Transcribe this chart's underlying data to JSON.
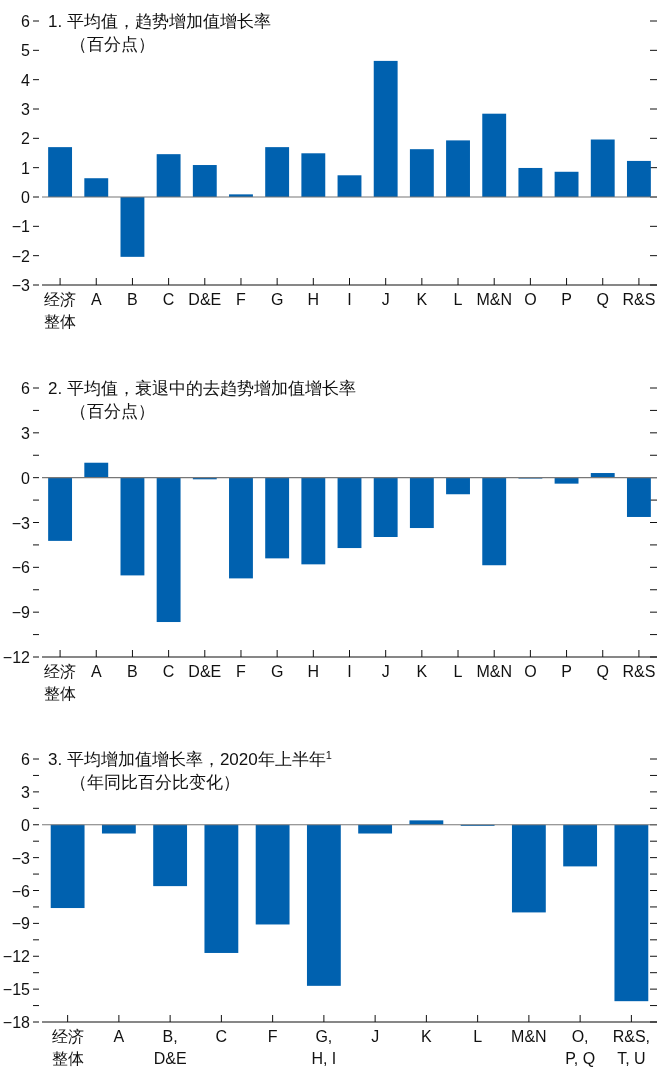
{
  "chart_data": [
    {
      "type": "bar",
      "title": "1. 平均值，趋势增加值增长率",
      "subtitle": "（百分点）",
      "color": "#0061af",
      "categories": [
        "经济整体",
        "A",
        "B",
        "C",
        "D&E",
        "F",
        "G",
        "H",
        "I",
        "J",
        "K",
        "L",
        "M&N",
        "O",
        "P",
        "Q",
        "R&S"
      ],
      "values": [
        1.7,
        0.64,
        -2.04,
        1.46,
        1.09,
        0.09,
        1.7,
        1.49,
        0.74,
        4.64,
        1.63,
        1.93,
        2.84,
        0.99,
        0.86,
        1.96,
        1.23
      ],
      "ylim": [
        -3,
        6
      ],
      "yticks": [
        -3,
        -2,
        -1,
        0,
        1,
        2,
        3,
        4,
        5,
        6
      ]
    },
    {
      "type": "bar",
      "title": "2. 平均值，衰退中的去趋势增加值增长率",
      "subtitle": "（百分点）",
      "color": "#0061af",
      "categories": [
        "经济整体",
        "A",
        "B",
        "C",
        "D&E",
        "F",
        "G",
        "H",
        "I",
        "J",
        "K",
        "L",
        "M&N",
        "O",
        "P",
        "Q",
        "R&S"
      ],
      "values": [
        -4.23,
        1.0,
        -6.54,
        -9.66,
        -0.11,
        -6.74,
        -5.4,
        -5.8,
        -4.71,
        -3.97,
        -3.37,
        -1.11,
        -5.86,
        -0.06,
        -0.4,
        0.31,
        -2.63
      ],
      "ylim": [
        -12,
        6
      ],
      "yticks": [
        -12,
        {
          "value": -10.5,
          "label": null
        },
        -9,
        {
          "value": -7.5,
          "label": null
        },
        -6,
        {
          "value": -4.5,
          "label": null
        },
        -3,
        {
          "value": -1.5,
          "label": null
        },
        0,
        {
          "value": 1.5,
          "label": null
        },
        3,
        {
          "value": 4.5,
          "label": null
        },
        6
      ]
    },
    {
      "type": "bar",
      "title": "3. 平均增加值增长率，2020年上半年$^{1}$",
      "subtitle": "（年同比百分比变化）",
      "color": "#0061af",
      "categories": [
        "经济整体",
        "A",
        "B,\nD&E",
        "C",
        "F",
        "G,\nH, I",
        "J",
        "K",
        "L",
        "M&N",
        "O,\nP, Q",
        "R&S,\nT, U"
      ],
      "values": [
        -7.6,
        -0.8,
        -5.6,
        -11.7,
        -9.1,
        -14.7,
        -0.8,
        0.4,
        -0.1,
        -8.0,
        -3.8,
        -16.1
      ],
      "ylim": [
        -18,
        6
      ],
      "yticks": [
        -18,
        {
          "value": -16.5,
          "label": null
        },
        -15,
        {
          "value": -13.5,
          "label": null
        },
        -12,
        {
          "value": -10.5,
          "label": null
        },
        -9,
        {
          "value": -7.5,
          "label": null
        },
        -6,
        {
          "value": -4.5,
          "label": null
        },
        -3,
        {
          "value": -1.5,
          "label": null
        },
        0,
        {
          "value": 1.5,
          "label": null
        },
        3,
        {
          "value": 4.5,
          "label": null
        },
        6
      ]
    }
  ]
}
